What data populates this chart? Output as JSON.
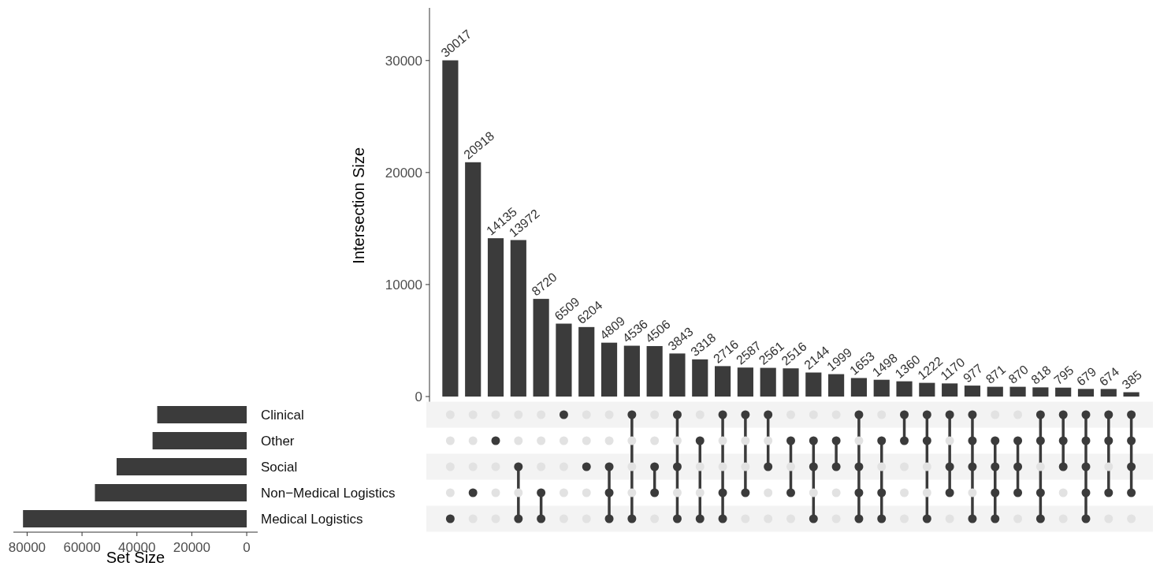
{
  "chart_data": [
    {
      "type": "bar",
      "ylabel": "Intersection Size",
      "categories": [
        null,
        null,
        null,
        null,
        null,
        null,
        null,
        null,
        null,
        null,
        null,
        null,
        null,
        null,
        null,
        null,
        null,
        null,
        null,
        null,
        null,
        null,
        null,
        null,
        null,
        null,
        null,
        null,
        null,
        null,
        null
      ],
      "values": [
        30017,
        20918,
        14135,
        13972,
        8720,
        6509,
        6204,
        4809,
        4536,
        4506,
        3843,
        3318,
        2716,
        2587,
        2561,
        2516,
        2144,
        1999,
        1653,
        1498,
        1360,
        1222,
        1170,
        977,
        871,
        870,
        818,
        795,
        679,
        674,
        385
      ],
      "color": "#3b3b3b",
      "ylim": [
        -600,
        34700
      ],
      "yticks": [
        0,
        10000,
        20000,
        30000
      ],
      "data_labels": true,
      "grid": false
    },
    {
      "type": "other",
      "categories": [
        null,
        null,
        null,
        null,
        null,
        null,
        null,
        null,
        null,
        null,
        null,
        null,
        null,
        null,
        null,
        null,
        null,
        null,
        null,
        null,
        null,
        null,
        null,
        null,
        null,
        null,
        null,
        null,
        null,
        null,
        null
      ],
      "y_categories": [
        null,
        null,
        null,
        null,
        null
      ],
      "colors": [
        "#e2e2e2",
        "#3b3b3b"
      ],
      "cells": [
        [
          false,
          false,
          false,
          false,
          false,
          true,
          false,
          false,
          true,
          false,
          true,
          false,
          true,
          true,
          true,
          false,
          false,
          false,
          true,
          false,
          true,
          true,
          true,
          true,
          false,
          false,
          true,
          true,
          true,
          true,
          true
        ],
        [
          false,
          false,
          true,
          false,
          false,
          false,
          false,
          false,
          false,
          false,
          false,
          true,
          false,
          false,
          false,
          true,
          true,
          true,
          false,
          true,
          true,
          true,
          false,
          true,
          true,
          true,
          true,
          true,
          true,
          true,
          true
        ],
        [
          false,
          false,
          false,
          true,
          false,
          false,
          true,
          true,
          false,
          true,
          true,
          false,
          false,
          false,
          true,
          false,
          true,
          true,
          true,
          false,
          false,
          false,
          true,
          true,
          true,
          true,
          false,
          true,
          true,
          false,
          true
        ],
        [
          false,
          true,
          false,
          false,
          true,
          false,
          false,
          true,
          false,
          true,
          false,
          false,
          true,
          true,
          false,
          true,
          false,
          false,
          true,
          true,
          false,
          false,
          true,
          false,
          true,
          true,
          true,
          false,
          true,
          true,
          true
        ],
        [
          true,
          false,
          false,
          true,
          true,
          false,
          false,
          true,
          true,
          false,
          true,
          true,
          true,
          false,
          false,
          false,
          true,
          false,
          true,
          true,
          false,
          true,
          false,
          true,
          true,
          false,
          true,
          false,
          true,
          false,
          false
        ]
      ]
    },
    {
      "type": "bar",
      "orientation": "horizontal",
      "xlabel": "Set Size",
      "categories": [
        "Clinical",
        "Other",
        "Social",
        "Non−Medical Logistics",
        "Medical Logistics"
      ],
      "values": [
        32600,
        34300,
        47400,
        55300,
        81500
      ],
      "color": "#3b3b3b",
      "xlim": [
        85000,
        -4000
      ],
      "xticks": [
        80000,
        60000,
        40000,
        20000,
        0
      ],
      "grid": false
    }
  ]
}
